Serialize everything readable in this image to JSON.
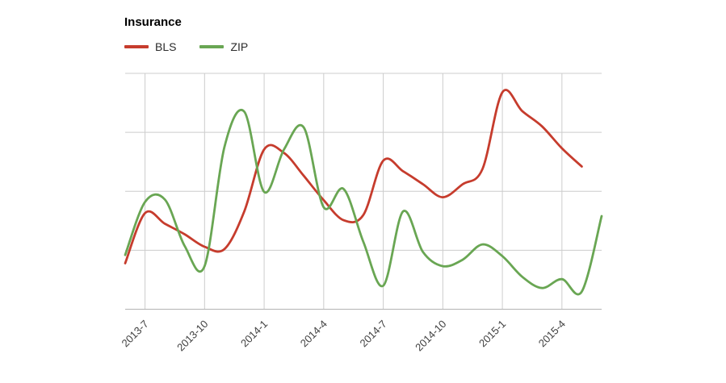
{
  "header": {
    "title": "Insurance"
  },
  "legend": {
    "items": [
      {
        "label": "BLS",
        "color": "#c63c2d"
      },
      {
        "label": "ZIP",
        "color": "#69a653"
      }
    ]
  },
  "colors": {
    "background": "#ffffff",
    "gridline": "#cccccc",
    "axis_line": "#b3b3b3",
    "tick_label": "#404040",
    "title": "#000000",
    "bls_line": "#c63c2d",
    "zip_line": "#69a653"
  },
  "chart_data": {
    "type": "line",
    "title": "Insurance",
    "xlabel": "",
    "ylabel": "",
    "smoothing": "cubic-spline",
    "x": [
      "2013-6",
      "2013-7",
      "2013-8",
      "2013-9",
      "2013-10",
      "2013-11",
      "2013-12",
      "2014-1",
      "2014-2",
      "2014-3",
      "2014-4",
      "2014-5",
      "2014-6",
      "2014-7",
      "2014-8",
      "2014-9",
      "2014-10",
      "2014-11",
      "2014-12",
      "2015-1",
      "2015-2",
      "2015-3",
      "2015-4",
      "2015-5",
      "2015-6"
    ],
    "series": [
      {
        "name": "BLS",
        "color": "#c63c2d",
        "values": [
          0.78,
          1.63,
          1.45,
          1.27,
          1.06,
          1.02,
          1.66,
          2.71,
          2.65,
          2.26,
          1.85,
          1.51,
          1.6,
          2.52,
          2.34,
          2.12,
          1.9,
          2.12,
          2.38,
          3.68,
          3.36,
          3.1,
          2.73,
          2.42,
          null
        ]
      },
      {
        "name": "ZIP",
        "color": "#69a653",
        "values": [
          0.92,
          1.82,
          1.86,
          1.07,
          0.73,
          2.75,
          3.35,
          1.99,
          2.71,
          3.08,
          1.73,
          2.04,
          1.14,
          0.4,
          1.66,
          0.97,
          0.73,
          0.84,
          1.1,
          0.9,
          0.55,
          0.36,
          0.51,
          0.3,
          1.58
        ]
      }
    ],
    "x_tick_labels": [
      "2013-7",
      "2013-10",
      "2014-1",
      "2014-4",
      "2014-7",
      "2014-10",
      "2015-1",
      "2015-4"
    ],
    "x_tick_indices": [
      1,
      4,
      7,
      10,
      13,
      16,
      19,
      22
    ],
    "x_tick_rotation_deg": -45,
    "ylim": [
      0,
      4
    ],
    "y_gridline_values": [
      0,
      1,
      2,
      3,
      4
    ],
    "y_tick_labels_visible": false,
    "grid": true,
    "legend_position": "top-left",
    "value_scale_note": "y values in unlabeled grid units: 0 = bottom axis line, +1 per horizontal gridline (4 = top gridline)"
  }
}
